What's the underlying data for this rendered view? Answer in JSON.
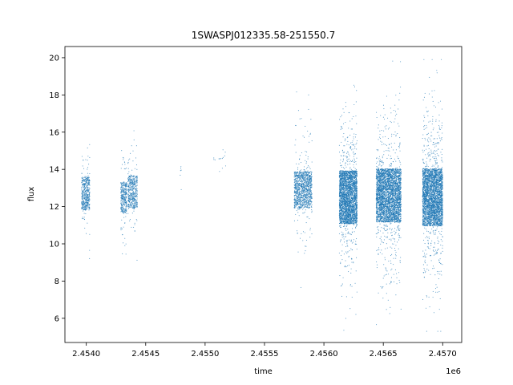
{
  "chart_data": {
    "type": "scatter",
    "title": "1SWASPJ012335.58-251550.7",
    "xlabel": "time",
    "ylabel": "flux",
    "x_offset_label": "1e6",
    "xlim": [
      2.45382,
      2.45716
    ],
    "ylim": [
      4.7,
      20.6
    ],
    "xticks": [
      2.454,
      2.4545,
      2.455,
      2.4555,
      2.456,
      2.4565,
      2.457
    ],
    "xtick_labels": [
      "2.4540",
      "2.4545",
      "2.4550",
      "2.4555",
      "2.4560",
      "2.4565",
      "2.4570"
    ],
    "yticks": [
      6,
      8,
      10,
      12,
      14,
      16,
      18,
      20
    ],
    "ytick_labels": [
      "6",
      "8",
      "10",
      "12",
      "14",
      "16",
      "18",
      "20"
    ],
    "grid": false,
    "marker_color": "#1f77b4",
    "series": [
      {
        "clusters": [
          {
            "x": [
              2.45396,
              2.45403
            ],
            "y_center": 12.7,
            "spread": 1.6,
            "count": 500
          },
          {
            "x": [
              2.45429,
              2.45434
            ],
            "y_center": 12.5,
            "spread": 1.5,
            "count": 350
          },
          {
            "x": [
              2.45435,
              2.45443
            ],
            "y_center": 12.8,
            "spread": 1.6,
            "count": 500
          },
          {
            "x": [
              2.45479,
              2.4548
            ],
            "y_center": 13.7,
            "spread": 1.0,
            "count": 6
          },
          {
            "x": [
              2.45507,
              2.45518
            ],
            "y_center": 14.6,
            "spread": 1.0,
            "count": 14
          },
          {
            "x": [
              2.45575,
              2.4559
            ],
            "y_center": 12.9,
            "spread": 1.8,
            "count": 1200
          },
          {
            "x": [
              2.45613,
              2.45628
            ],
            "y_center": 12.5,
            "spread": 2.6,
            "count": 3200
          },
          {
            "x": [
              2.45644,
              2.45665
            ],
            "y_center": 12.6,
            "spread": 2.6,
            "count": 3800
          },
          {
            "x": [
              2.45683,
              2.457
            ],
            "y_center": 12.5,
            "spread": 2.8,
            "count": 3600
          }
        ]
      }
    ]
  }
}
